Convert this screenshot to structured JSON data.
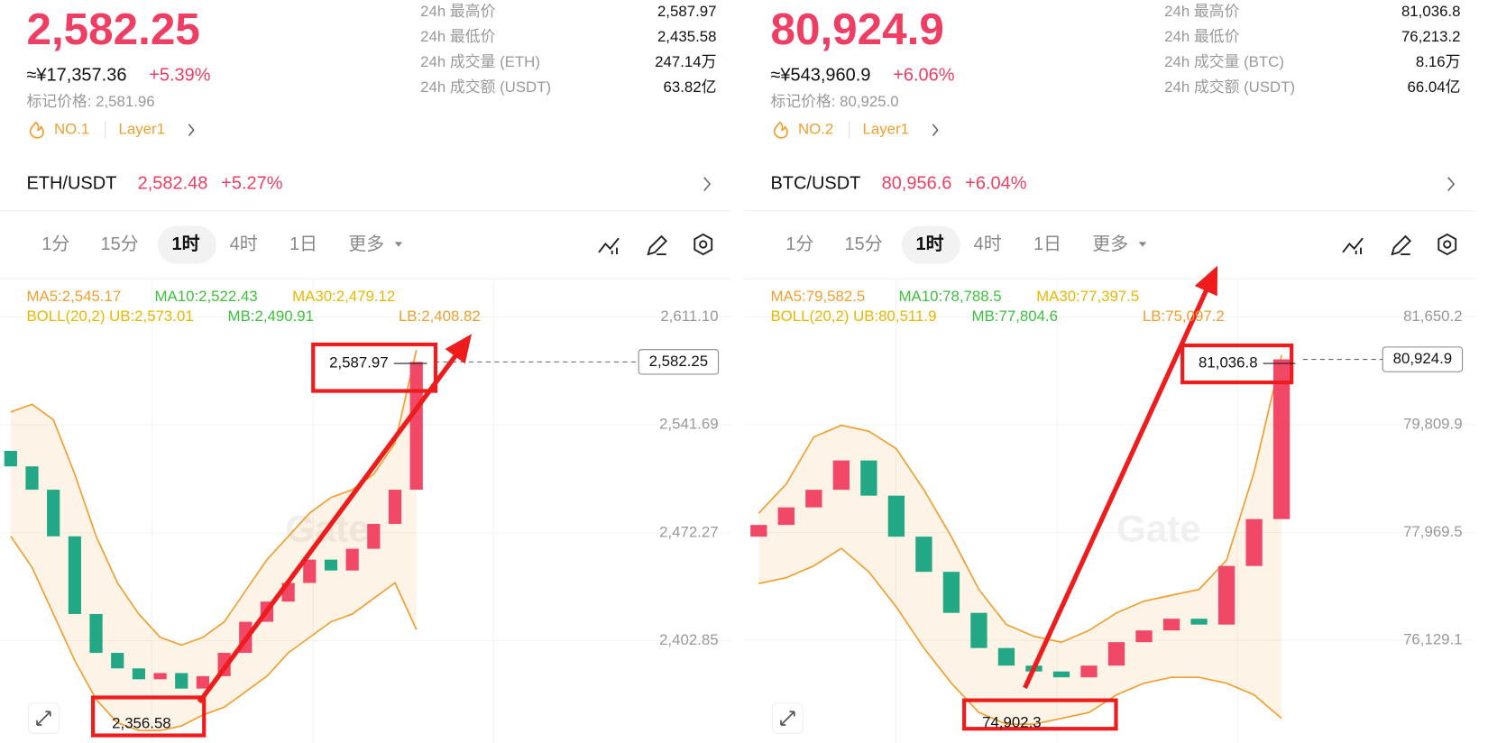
{
  "panels": [
    {
      "price": "2,582.25",
      "cny": "≈¥17,357.36",
      "pct": "+5.39%",
      "mark_price": "标记价格: 2,581.96",
      "rank": "NO.1",
      "tag": "Layer1",
      "stats": [
        {
          "label": "24h 最高价",
          "value": "2,587.97"
        },
        {
          "label": "24h 最低价",
          "value": "2,435.58"
        },
        {
          "label": "24h 成交量 (ETH)",
          "value": "247.14万"
        },
        {
          "label": "24h 成交额 (USDT)",
          "value": "63.82亿"
        }
      ],
      "pair": "ETH/USDT",
      "pair_price": "2,582.48",
      "pair_pct": "+5.27%",
      "tabs": [
        "1分",
        "15分",
        "1时",
        "4时",
        "1日",
        "更多"
      ],
      "ma": [
        "MA5:2,545.17",
        "MA10:2,522.43",
        "MA30:2,479.12"
      ],
      "boll": [
        "BOLL(20,2) UB:2,573.01",
        "MB:2,490.91",
        "LB:2,408.82"
      ],
      "watermark": "Gate",
      "chart": {
        "ylim": [
          2337,
          2635
        ],
        "yticks": [
          {
            "value": 2611.1,
            "label": "2,611.10"
          },
          {
            "value": 2541.69,
            "label": "2,541.69"
          },
          {
            "value": 2472.27,
            "label": "2,472.27"
          },
          {
            "value": 2402.85,
            "label": "2,402.85"
          }
        ],
        "last": {
          "value": 2582.25,
          "label": "2,582.25"
        },
        "high_label": "2,587.97",
        "low_label": "2,356.58",
        "up_color": "#f04866",
        "down_color": "#22a885",
        "band_color": "#f0a030",
        "open": [
          2525,
          2515,
          2500,
          2470,
          2420,
          2395,
          2385,
          2378,
          2382,
          2372,
          2380,
          2395,
          2415,
          2428,
          2440,
          2455,
          2448,
          2462,
          2478,
          2500
        ],
        "close": [
          2515,
          2500,
          2470,
          2420,
          2395,
          2385,
          2378,
          2382,
          2372,
          2380,
          2395,
          2415,
          2428,
          2440,
          2455,
          2448,
          2462,
          2478,
          2500,
          2582.25
        ],
        "ub": [
          2550,
          2555,
          2545,
          2510,
          2470,
          2440,
          2420,
          2405,
          2400,
          2405,
          2415,
          2435,
          2455,
          2470,
          2485,
          2495,
          2500,
          2510,
          2530,
          2590
        ],
        "lb": [
          2470,
          2450,
          2420,
          2390,
          2365,
          2350,
          2345,
          2345,
          2348,
          2355,
          2360,
          2370,
          2380,
          2395,
          2405,
          2415,
          2420,
          2430,
          2440,
          2410
        ]
      }
    },
    {
      "price": "80,924.9",
      "cny": "≈¥543,960.9",
      "pct": "+6.06%",
      "mark_price": "标记价格: 80,925.0",
      "rank": "NO.2",
      "tag": "Layer1",
      "stats": [
        {
          "label": "24h 最高价",
          "value": "81,036.8"
        },
        {
          "label": "24h 最低价",
          "value": "76,213.2"
        },
        {
          "label": "24h 成交量 (BTC)",
          "value": "8.16万"
        },
        {
          "label": "24h 成交额 (USDT)",
          "value": "66.04亿"
        }
      ],
      "pair": "BTC/USDT",
      "pair_price": "80,956.6",
      "pair_pct": "+6.04%",
      "tabs": [
        "1分",
        "15分",
        "1时",
        "4时",
        "1日",
        "更多"
      ],
      "ma": [
        "MA5:79,582.5",
        "MA10:78,788.5",
        "MA30:77,397.5"
      ],
      "boll": [
        "BOLL(20,2) UB:80,511.9",
        "MB:77,804.6",
        "LB:75,097.2"
      ],
      "watermark": "Gate",
      "chart": {
        "ylim": [
          74380,
          82280
        ],
        "yticks": [
          {
            "value": 81650.2,
            "label": "81,650.2"
          },
          {
            "value": 79809.9,
            "label": "79,809.9"
          },
          {
            "value": 77969.5,
            "label": "77,969.5"
          },
          {
            "value": 76129.1,
            "label": "76,129.1"
          }
        ],
        "last": {
          "value": 80924.9,
          "label": "80,924.9"
        },
        "high_label": "81,036.8",
        "low_label": "74,902.3",
        "up_color": "#f04866",
        "down_color": "#22a885",
        "band_color": "#f0a030",
        "open": [
          77900,
          78100,
          78400,
          78700,
          79200,
          78600,
          77900,
          77300,
          76600,
          76000,
          75700,
          75600,
          75500,
          75700,
          76100,
          76300,
          76500,
          76400,
          77400,
          78200
        ],
        "close": [
          78100,
          78400,
          78700,
          79200,
          78600,
          77900,
          77300,
          76600,
          76000,
          75700,
          75600,
          75500,
          75700,
          76100,
          76300,
          76500,
          76400,
          77400,
          78200,
          80924.9
        ],
        "ub": [
          78300,
          78800,
          79600,
          79800,
          79700,
          79400,
          78700,
          77900,
          77000,
          76400,
          76200,
          76100,
          76300,
          76600,
          76800,
          76900,
          77000,
          77500,
          79000,
          81000
        ],
        "lb": [
          77100,
          77200,
          77400,
          77700,
          77300,
          76700,
          76000,
          75400,
          74900,
          74700,
          74700,
          74800,
          74900,
          75200,
          75400,
          75500,
          75500,
          75400,
          75200,
          74800
        ]
      }
    }
  ]
}
